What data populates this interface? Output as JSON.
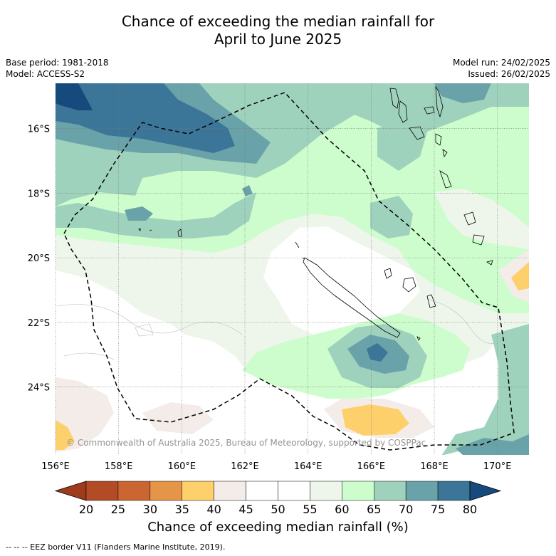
{
  "title": {
    "line1": "Chance of exceeding the median rainfall for",
    "line2": "April to June 2025"
  },
  "meta_left": {
    "base_period": "Base period: 1981-2018",
    "model": "Model: ACCESS-S2"
  },
  "meta_right": {
    "model_run": "Model run: 24/02/2025",
    "issued": "Issued: 26/02/2025"
  },
  "map": {
    "lon_range": [
      156,
      171
    ],
    "lat_range": [
      -26.1,
      -14.6
    ],
    "lon_ticks": [
      {
        "value": 156,
        "label": "156°E"
      },
      {
        "value": 158,
        "label": "158°E"
      },
      {
        "value": 160,
        "label": "160°E"
      },
      {
        "value": 162,
        "label": "162°E"
      },
      {
        "value": 164,
        "label": "164°E"
      },
      {
        "value": 166,
        "label": "166°E"
      },
      {
        "value": 168,
        "label": "168°E"
      },
      {
        "value": 170,
        "label": "170°E"
      }
    ],
    "lat_ticks": [
      {
        "value": -16,
        "label": "16°S"
      },
      {
        "value": -18,
        "label": "18°S"
      },
      {
        "value": -20,
        "label": "20°S"
      },
      {
        "value": -22,
        "label": "22°S"
      },
      {
        "value": -24,
        "label": "24°S"
      }
    ],
    "grid": true,
    "copyright": "© Commonwealth of Australia 2025, Bureau of Meteorology, supported by COSPPac"
  },
  "colorbar": {
    "ticks": [
      "20",
      "25",
      "30",
      "35",
      "40",
      "45",
      "50",
      "55",
      "60",
      "65",
      "70",
      "75",
      "80"
    ],
    "colors": [
      "#9e3b1c",
      "#b34c26",
      "#cb6532",
      "#e49548",
      "#fdd06b",
      "#f4ece9",
      "#ffffff",
      "#ffffff",
      "#eef6ec",
      "#cdfdcc",
      "#9fd2bd",
      "#6aa2a9",
      "#3b7598",
      "#164a7d"
    ],
    "label": "Chance of exceeding median rainfall (%)"
  },
  "footer": "--  --  -- EEZ border V11 (Flanders Marine Institute, 2019)."
}
